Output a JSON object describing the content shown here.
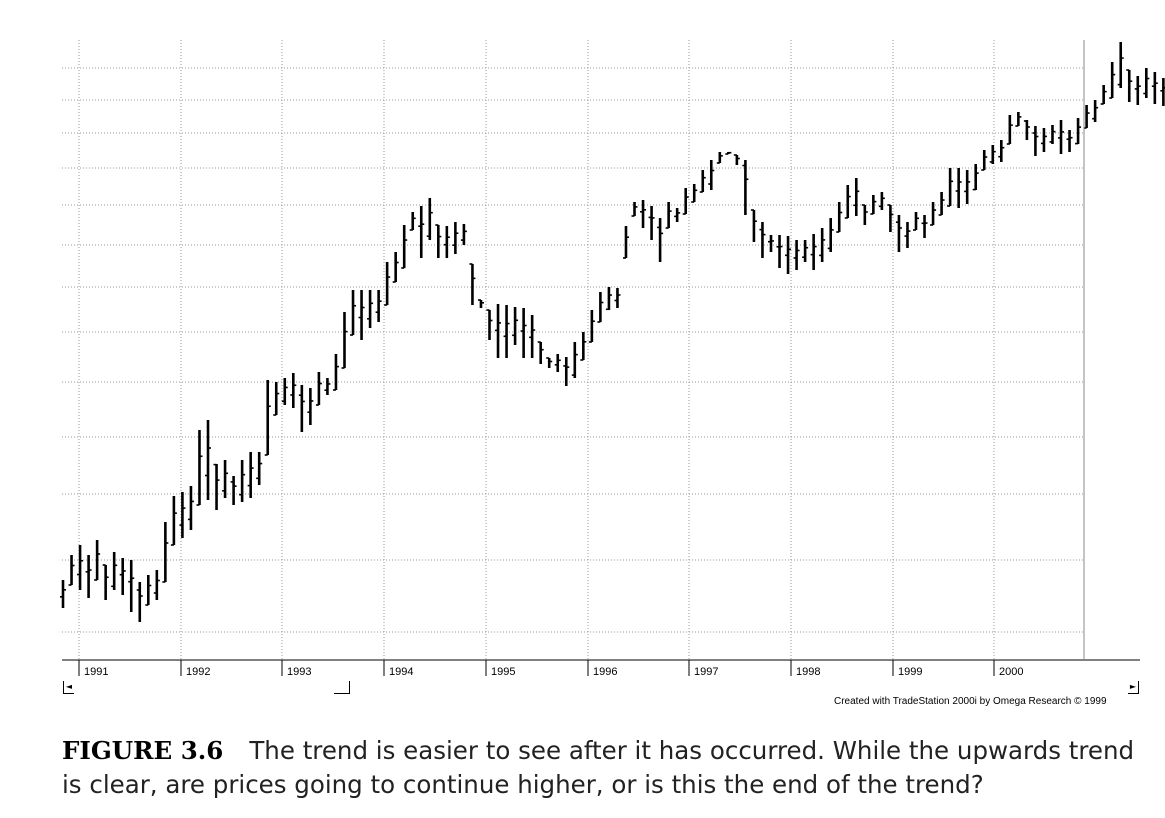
{
  "chart_data": {
    "type": "bar",
    "style": "monthly OHLC price bars",
    "title": "",
    "xlabel": "",
    "ylabel": "",
    "x_tick_labels": [
      "1991",
      "1992",
      "1993",
      "1994",
      "1995",
      "1996",
      "1997",
      "1998",
      "1999",
      "2000"
    ],
    "y_tick_labels_visible": false,
    "grid": "dotted, on",
    "start": "1990-10",
    "bars": [
      [
        608,
        580
      ],
      [
        585,
        555
      ],
      [
        590,
        545
      ],
      [
        598,
        555
      ],
      [
        580,
        540
      ],
      [
        600,
        565
      ],
      [
        590,
        552
      ],
      [
        595,
        558
      ],
      [
        612,
        560
      ],
      [
        622,
        582
      ],
      [
        605,
        575
      ],
      [
        600,
        570
      ],
      [
        582,
        522
      ],
      [
        545,
        496
      ],
      [
        538,
        492
      ],
      [
        530,
        486
      ],
      [
        505,
        430
      ],
      [
        500,
        420
      ],
      [
        510,
        464
      ],
      [
        498,
        460
      ],
      [
        505,
        476
      ],
      [
        502,
        460
      ],
      [
        498,
        452
      ],
      [
        485,
        452
      ],
      [
        455,
        380
      ],
      [
        415,
        382
      ],
      [
        405,
        378
      ],
      [
        408,
        373
      ],
      [
        432,
        385
      ],
      [
        425,
        388
      ],
      [
        405,
        372
      ],
      [
        395,
        378
      ],
      [
        390,
        354
      ],
      [
        368,
        312
      ],
      [
        335,
        290
      ],
      [
        340,
        290
      ],
      [
        328,
        290
      ],
      [
        322,
        290
      ],
      [
        305,
        262
      ],
      [
        282,
        252
      ],
      [
        268,
        225
      ],
      [
        230,
        212
      ],
      [
        258,
        206
      ],
      [
        240,
        198
      ],
      [
        258,
        225
      ],
      [
        258,
        226
      ],
      [
        254,
        222
      ],
      [
        245,
        224
      ],
      [
        305,
        264
      ],
      [
        308,
        300
      ],
      [
        340,
        310
      ],
      [
        358,
        304
      ],
      [
        358,
        305
      ],
      [
        345,
        307
      ],
      [
        358,
        308
      ],
      [
        358,
        315
      ],
      [
        364,
        342
      ],
      [
        368,
        358
      ],
      [
        372,
        354
      ],
      [
        386,
        357
      ],
      [
        378,
        342
      ],
      [
        360,
        332
      ],
      [
        342,
        310
      ],
      [
        322,
        292
      ],
      [
        310,
        287
      ],
      [
        308,
        288
      ],
      [
        258,
        226
      ],
      [
        216,
        202
      ],
      [
        228,
        200
      ],
      [
        240,
        206
      ],
      [
        262,
        218
      ],
      [
        228,
        202
      ],
      [
        222,
        208
      ],
      [
        214,
        188
      ],
      [
        202,
        184
      ],
      [
        192,
        170
      ],
      [
        190,
        160
      ],
      [
        163,
        152
      ],
      [
        154,
        152
      ],
      [
        165,
        155
      ],
      [
        215,
        160
      ],
      [
        242,
        210
      ],
      [
        258,
        222
      ],
      [
        252,
        235
      ],
      [
        268,
        235
      ],
      [
        274,
        236
      ],
      [
        270,
        240
      ],
      [
        262,
        240
      ],
      [
        270,
        234
      ],
      [
        262,
        228
      ],
      [
        252,
        218
      ],
      [
        232,
        202
      ],
      [
        218,
        185
      ],
      [
        216,
        178
      ],
      [
        225,
        205
      ],
      [
        214,
        195
      ],
      [
        210,
        192
      ],
      [
        232,
        205
      ],
      [
        252,
        215
      ],
      [
        248,
        222
      ],
      [
        230,
        212
      ],
      [
        238,
        215
      ],
      [
        225,
        202
      ],
      [
        215,
        192
      ],
      [
        206,
        168
      ],
      [
        208,
        168
      ],
      [
        204,
        170
      ],
      [
        190,
        164
      ],
      [
        170,
        150
      ],
      [
        164,
        145
      ],
      [
        162,
        140
      ],
      [
        144,
        115
      ],
      [
        126,
        112
      ],
      [
        140,
        120
      ],
      [
        156,
        126
      ],
      [
        152,
        128
      ],
      [
        144,
        125
      ],
      [
        154,
        120
      ],
      [
        152,
        130
      ],
      [
        144,
        118
      ],
      [
        128,
        105
      ],
      [
        122,
        100
      ],
      [
        104,
        85
      ],
      [
        98,
        62
      ],
      [
        88,
        42
      ],
      [
        102,
        70
      ],
      [
        105,
        76
      ],
      [
        98,
        68
      ],
      [
        104,
        72
      ],
      [
        106,
        78
      ],
      [
        112,
        84
      ],
      [
        140,
        84
      ],
      [
        138,
        110
      ],
      [
        140,
        112
      ],
      [
        136,
        112
      ],
      [
        160,
        108
      ],
      [
        175,
        142
      ],
      [
        178,
        150
      ],
      [
        164,
        150
      ],
      [
        180,
        155
      ],
      [
        176,
        165
      ],
      [
        170,
        155
      ],
      [
        178,
        158
      ],
      [
        172,
        160
      ],
      [
        196,
        170
      ],
      [
        200,
        176
      ],
      [
        202,
        176
      ],
      [
        218,
        176
      ],
      [
        182,
        175
      ],
      [
        172,
        156
      ],
      [
        182,
        165
      ],
      [
        168,
        148
      ],
      [
        146,
        134
      ],
      [
        160,
        140
      ],
      [
        165,
        150
      ],
      [
        170,
        150
      ],
      [
        190,
        172
      ],
      [
        174,
        155
      ],
      [
        150,
        138
      ],
      [
        148,
        137
      ],
      [
        156,
        142
      ],
      [
        136,
        128
      ],
      [
        144,
        127
      ],
      [
        150,
        132
      ],
      [
        136,
        126
      ],
      [
        148,
        126
      ],
      [
        150,
        136
      ],
      [
        128,
        116
      ]
    ]
  },
  "credit": "Created with TradeStation 2000i by Omega Research © 1999",
  "scroll": {
    "left_glyph": "◄",
    "right_glyph": "►"
  },
  "caption": {
    "label": "FIGURE 3.6",
    "text": "The trend is easier to see after it has occurred. While the upwards trend is clear, are prices going to continue higher, or is this the end of the trend?"
  }
}
